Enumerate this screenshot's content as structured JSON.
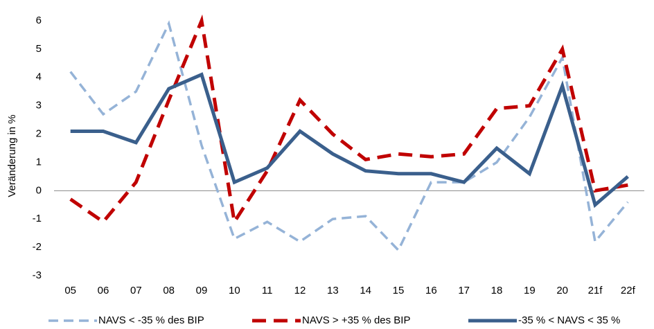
{
  "chart_data": {
    "type": "line",
    "ylabel": "Veränderung in %",
    "xlabel": "",
    "ylim": [
      -3,
      6
    ],
    "yticks": [
      -3,
      -2,
      -1,
      0,
      1,
      2,
      3,
      4,
      5,
      6
    ],
    "grid": false,
    "legend_position": "bottom",
    "categories": [
      "05",
      "06",
      "07",
      "08",
      "09",
      "10",
      "11",
      "12",
      "13",
      "14",
      "15",
      "16",
      "17",
      "18",
      "19",
      "20",
      "21f",
      "22f"
    ],
    "series": [
      {
        "name": "NAVS < -35 % des BIP",
        "color": "#95b3d7",
        "style": "dashed",
        "values": [
          4.2,
          2.7,
          3.5,
          5.9,
          1.6,
          -1.7,
          -1.1,
          -1.8,
          -1.0,
          -0.9,
          -2.1,
          0.3,
          0.3,
          1.0,
          2.6,
          4.7,
          -1.8,
          -0.4
        ]
      },
      {
        "name": "NAVS > +35 % des BIP",
        "color": "#c00000",
        "style": "dashed",
        "values": [
          -0.3,
          -1.1,
          0.3,
          3.2,
          6.0,
          -1.1,
          0.7,
          3.2,
          2.0,
          1.1,
          1.3,
          1.2,
          1.3,
          2.9,
          3.0,
          5.0,
          0.0,
          0.2
        ]
      },
      {
        "name": "-35 % < NAVS < 35 %",
        "color": "#3a5f8c",
        "style": "solid",
        "values": [
          2.1,
          2.1,
          1.7,
          3.6,
          4.1,
          0.3,
          0.8,
          2.1,
          1.3,
          0.7,
          0.6,
          0.6,
          0.3,
          1.5,
          0.6,
          3.7,
          -0.5,
          0.5
        ]
      }
    ]
  }
}
